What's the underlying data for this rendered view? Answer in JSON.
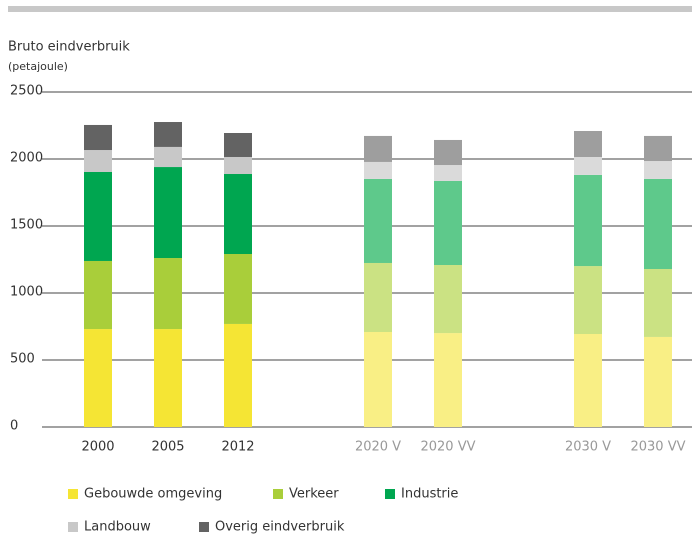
{
  "chart_data": {
    "type": "stacked_bar",
    "title": "Bruto eindverbruik",
    "subtitle": "(petajoule)",
    "categories": [
      "2000",
      "2005",
      "2012",
      null,
      "2020 V",
      "2020 VV",
      null,
      "2030 V",
      "2030 VV"
    ],
    "series": [
      {
        "name": "Gebouwde omgeving",
        "color": "#f5e534",
        "colors": [
          "#f5e534",
          "#f5e534",
          "#f5e534",
          null,
          "#f9ef85",
          "#f9ef85",
          null,
          "#f9ef85",
          "#f9ef85"
        ],
        "values": [
          731,
          731,
          769,
          null,
          709,
          701,
          null,
          694,
          672
        ]
      },
      {
        "name": "Verkeer",
        "color": "#a9ce3a",
        "colors": [
          "#a9ce3a",
          "#a9ce3a",
          "#a9ce3a",
          null,
          "#cbe283",
          "#cbe283",
          null,
          "#cbe283",
          "#cbe283"
        ],
        "values": [
          508,
          530,
          522,
          null,
          515,
          508,
          null,
          507,
          507
        ]
      },
      {
        "name": "Industrie",
        "color": "#00a650",
        "colors": [
          "#00a650",
          "#00a650",
          "#00a650",
          null,
          "#5ec98b",
          "#5ec98b",
          null,
          "#5ec98b",
          "#5ec98b"
        ],
        "values": [
          664,
          679,
          597,
          null,
          627,
          627,
          null,
          680,
          672
        ]
      },
      {
        "name": "Landbouw",
        "color": "#c8c8c8",
        "colors": [
          "#c8c8c8",
          "#c8c8c8",
          "#c8c8c8",
          null,
          "#dadada",
          "#dadada",
          null,
          "#dadada",
          "#dadada"
        ],
        "values": [
          164,
          150,
          127,
          null,
          127,
          119,
          null,
          134,
          134
        ]
      },
      {
        "name": "Overig eindverbruik",
        "color": "#636363",
        "colors": [
          "#636363",
          "#636363",
          "#636363",
          null,
          "#9e9e9e",
          "#9e9e9e",
          null,
          "#9e9e9e",
          "#9e9e9e"
        ],
        "values": [
          187,
          186,
          179,
          null,
          194,
          187,
          null,
          194,
          187
        ]
      }
    ],
    "ylim": [
      0,
      2500
    ],
    "yticks": [
      0,
      500,
      1000,
      1500,
      2000,
      2500
    ],
    "grid": true
  }
}
